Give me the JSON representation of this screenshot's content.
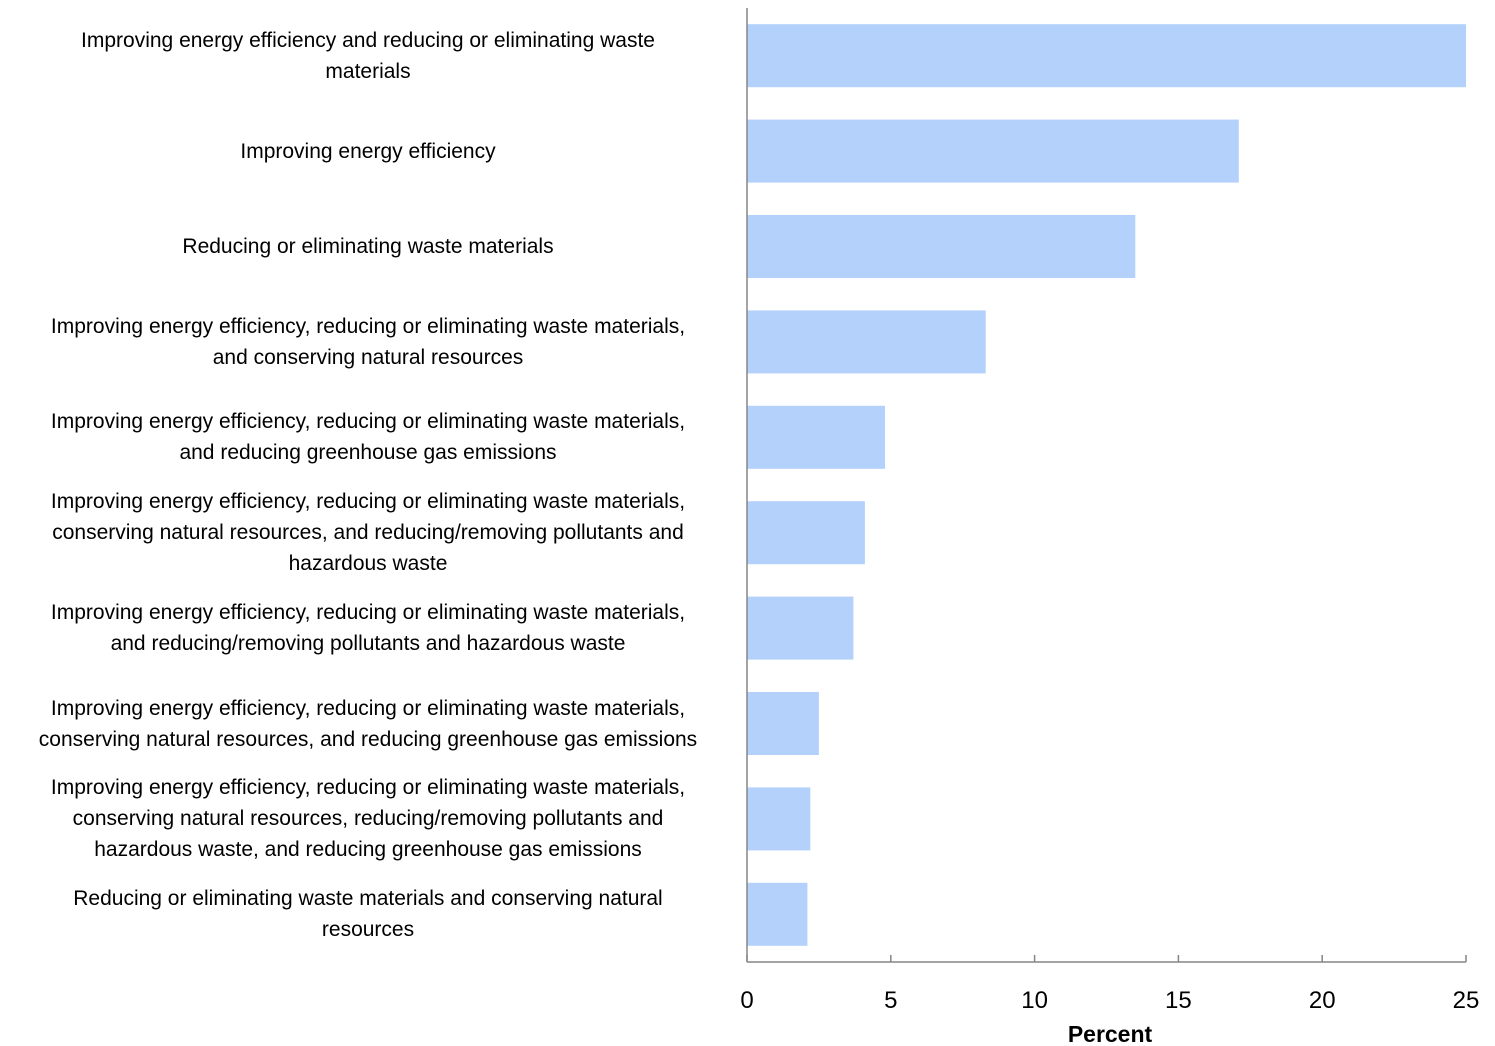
{
  "chart_data": {
    "type": "bar",
    "orientation": "horizontal",
    "title": "",
    "xlabel": "Percent",
    "ylabel": "",
    "xlim": [
      0,
      25
    ],
    "xticks": [
      0,
      5,
      10,
      15,
      20,
      25
    ],
    "grid": false,
    "legend": "none",
    "bar_color": "#b3d1fb",
    "axis_color": "#868686",
    "categories": [
      "Improving energy efficiency and reducing or eliminating waste\nmaterials",
      "Improving energy efficiency",
      "Reducing or eliminating  waste materials",
      "Improving energy efficiency, reducing or eliminating  waste materials,\nand conserving natural resources",
      "Improving energy efficiency, reducing or eliminating  waste materials,\nand reducing greenhouse gas emissions",
      "Improving energy efficiency, reducing or eliminating  waste materials,\nconserving natural resources, and reducing/removing pollutants and\nhazardous waste",
      "Improving energy efficiency, reducing or eliminating  waste materials,\nand reducing/removing pollutants and hazardous waste",
      "Improving energy efficiency, reducing or eliminating  waste materials,\nconserving natural resources, and reducing greenhouse gas emissions",
      "Improving energy efficiency, reducing or eliminating  waste materials,\nconserving natural resources, reducing/removing pollutants and\nhazardous waste, and reducing greenhouse gas emissions",
      "Reducing or eliminating  waste materials and conserving natural\nresources"
    ],
    "values": [
      25.0,
      17.1,
      13.5,
      8.3,
      4.8,
      4.1,
      3.7,
      2.5,
      2.2,
      2.1
    ]
  }
}
